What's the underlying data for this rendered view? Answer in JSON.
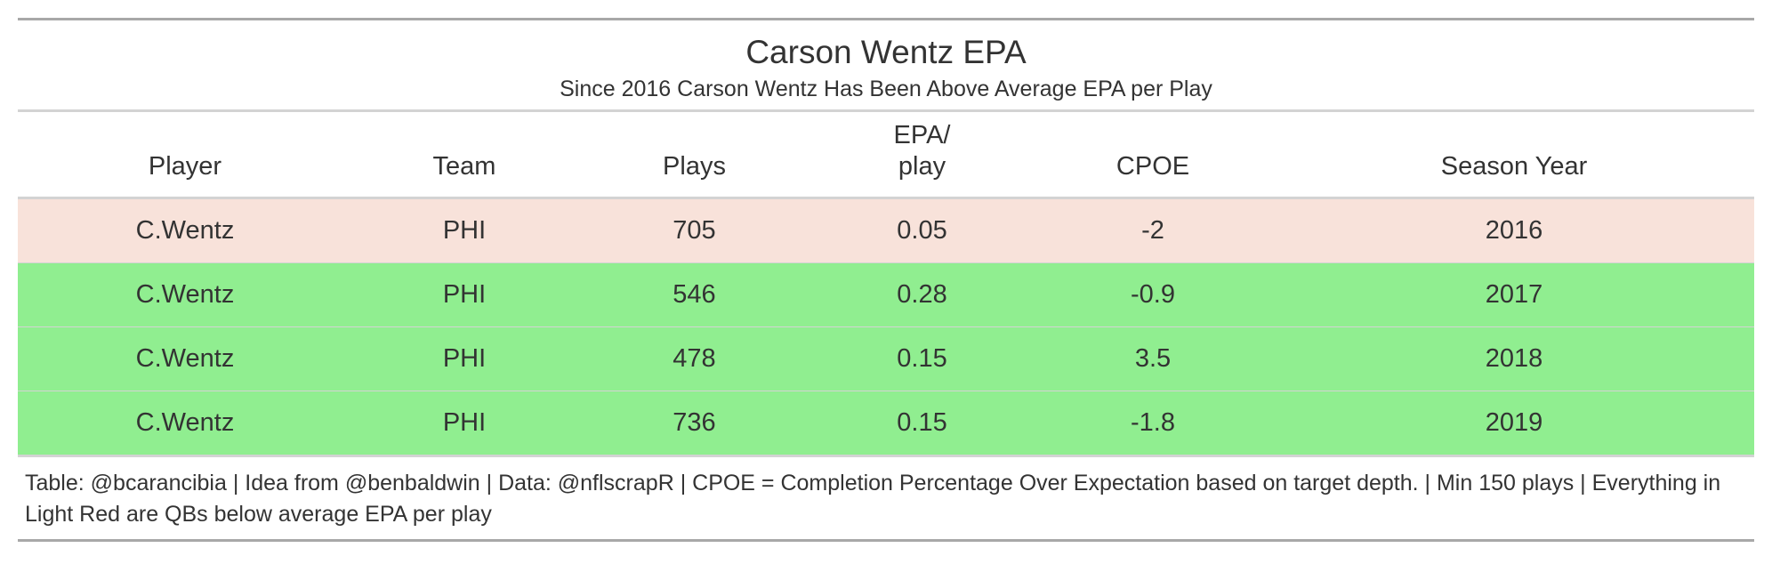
{
  "chart_data": {
    "type": "table",
    "title": "Carson Wentz EPA",
    "subtitle": "Since 2016 Carson Wentz Has Been Above Average EPA per Play",
    "columns": [
      "Player",
      "Team",
      "Plays",
      "EPA/\nplay",
      "CPOE",
      "Season Year"
    ],
    "rows": [
      {
        "cells": [
          "C.Wentz",
          "PHI",
          "705",
          "0.05",
          "-2",
          "2016"
        ],
        "status": "below"
      },
      {
        "cells": [
          "C.Wentz",
          "PHI",
          "546",
          "0.28",
          "-0.9",
          "2017"
        ],
        "status": "above"
      },
      {
        "cells": [
          "C.Wentz",
          "PHI",
          "478",
          "0.15",
          "3.5",
          "2018"
        ],
        "status": "above"
      },
      {
        "cells": [
          "C.Wentz",
          "PHI",
          "736",
          "0.15",
          "-1.8",
          "2019"
        ],
        "status": "above"
      }
    ],
    "source_note": "Table: @bcarancibia | Idea from @benbaldwin | Data: @nflscrapR | CPOE = Completion Percentage Over Expectation based on target depth. | Min 150 plays | Everything in Light Red are QBs below average EPA per play",
    "colors": {
      "below": "#f8e2da",
      "above": "#90ee90"
    }
  }
}
